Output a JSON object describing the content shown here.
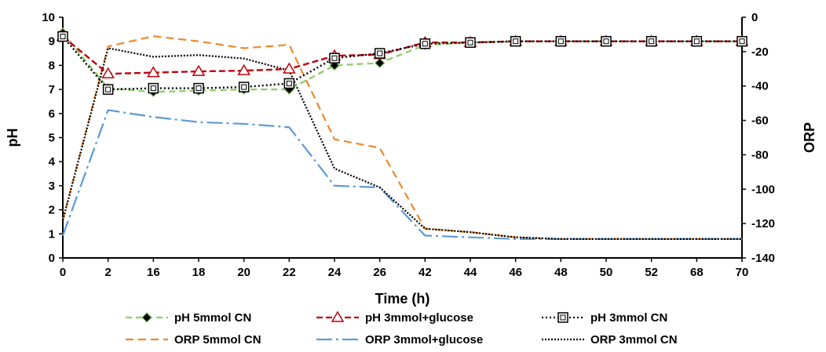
{
  "chart_data": {
    "type": "line",
    "title": "",
    "xlabel": "Time (h)",
    "ylabel": "pH",
    "y2label": "ORP",
    "categories": [
      "0",
      "2",
      "16",
      "18",
      "20",
      "22",
      "24",
      "26",
      "42",
      "44",
      "46",
      "48",
      "50",
      "52",
      "68",
      "70"
    ],
    "ylim": [
      0,
      10
    ],
    "y2lim": [
      -140,
      0
    ],
    "yticks": [
      "0",
      "1",
      "2",
      "3",
      "4",
      "5",
      "6",
      "7",
      "8",
      "9",
      "10"
    ],
    "y2ticks": [
      "0",
      "-20",
      "-40",
      "-60",
      "-80",
      "-100",
      "-120",
      "-140"
    ],
    "grid": false,
    "legend_position": "bottom",
    "series": [
      {
        "name": "pH 5mmol CN",
        "axis": "left",
        "color": "#8fce6c",
        "dash": "8,5",
        "marker": "diamond",
        "values": [
          9.35,
          7.05,
          6.9,
          6.95,
          7.0,
          7.0,
          8.0,
          8.1,
          8.85,
          8.95,
          9.0,
          9.0,
          9.0,
          9.0,
          9.0,
          9.0
        ]
      },
      {
        "name": "pH 3mmol+glucose",
        "axis": "left",
        "color": "#c0000c",
        "dash": "8,4",
        "marker": "triangle",
        "values": [
          9.2,
          7.65,
          7.7,
          7.75,
          7.78,
          7.85,
          8.4,
          8.45,
          8.95,
          8.95,
          9.0,
          9.0,
          9.0,
          9.0,
          9.0,
          9.0
        ]
      },
      {
        "name": "pH 3mmol CN",
        "axis": "left",
        "color": "#000000",
        "dash": "2,3",
        "marker": "square",
        "values": [
          9.2,
          7.0,
          7.05,
          7.05,
          7.1,
          7.25,
          8.3,
          8.5,
          8.9,
          8.95,
          9.0,
          9.0,
          9.0,
          9.0,
          9.0,
          9.0
        ]
      },
      {
        "name": "ORP 5mmol CN",
        "axis": "right",
        "color": "#f0882a",
        "dash": "10,6",
        "marker": "none",
        "values": [
          -118,
          -17,
          -11,
          -14,
          -18,
          -16,
          -71,
          -76,
          -123,
          -125,
          -128,
          -129,
          -129,
          -129,
          -129,
          -129
        ]
      },
      {
        "name": "ORP 3mmol+glucose",
        "axis": "right",
        "color": "#5b9bd5",
        "dash": "20,5,3,5",
        "marker": "none",
        "values": [
          -127,
          -54,
          -58,
          -61,
          -62,
          -64,
          -98,
          -99,
          -127,
          -128,
          -129,
          -129,
          -129,
          -129,
          -129,
          -129
        ]
      },
      {
        "name": "ORP 3mmol CN",
        "axis": "right",
        "color": "#000000",
        "dash": "2,2",
        "marker": "none",
        "values": [
          -118,
          -18,
          -23,
          -22,
          -24,
          -31,
          -88,
          -99,
          -123,
          -125,
          -128,
          -129,
          -129,
          -129,
          -129,
          -129
        ]
      }
    ]
  }
}
